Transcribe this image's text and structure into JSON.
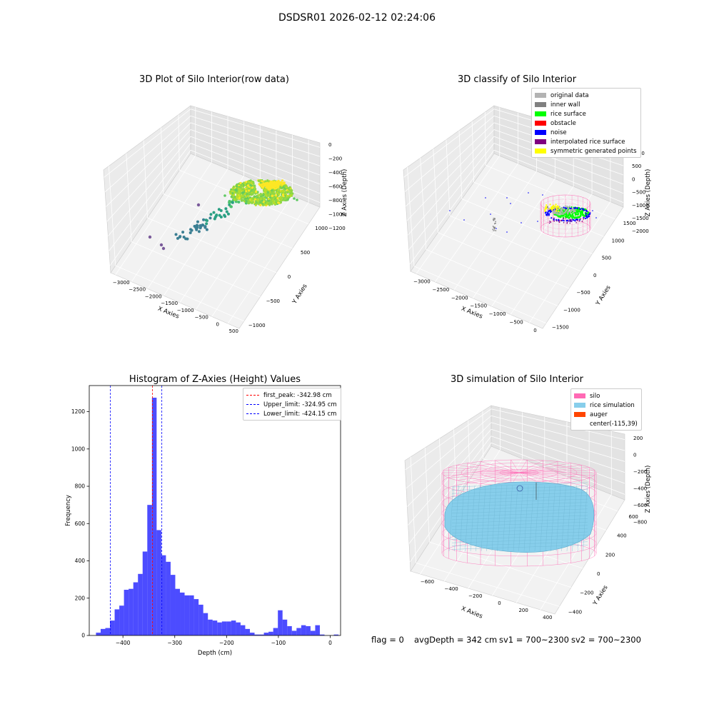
{
  "suptitle": "DSDSR01 2026-02-12 02:24:06",
  "footer": {
    "flag": "flag = 0",
    "avg_depth": "avgDepth = 342 cm",
    "sv1": "sv1 = 700~2300",
    "sv2": "sv2 = 700~2300"
  },
  "colors": {
    "silo": "#ff69b4",
    "rice": "#87ceeb",
    "auger": "#ff4500",
    "hist_bar": "#0000ff",
    "peak_line": "#ff0000",
    "limit_line": "#0000ff"
  },
  "chart_data": [
    {
      "type": "scatter",
      "projection": "3d",
      "title": "3D Plot of Silo Interior(row data)",
      "xlabel": "X Axies",
      "ylabel": "Y Axies",
      "zlabel": "Z Axies (Depth)",
      "x_ticks": [
        "−3000",
        "−2500",
        "−2000",
        "−1500",
        "−1000",
        "−500",
        "0",
        "500"
      ],
      "y_ticks": [
        "−1000",
        "−500",
        "0",
        "500",
        "1000"
      ],
      "z_ticks": [
        "0",
        "−200",
        "−400",
        "−600",
        "−800",
        "−1000",
        "−1200"
      ],
      "xlim": [
        -3300,
        500
      ],
      "ylim": [
        -1000,
        1100
      ],
      "zlim": [
        -1300,
        0
      ],
      "colormap": "viridis",
      "grid": true
    },
    {
      "type": "scatter",
      "projection": "3d",
      "title": "3D classify of Silo Interior",
      "xlabel": "X Axies",
      "ylabel": "Y Axies",
      "zlabel": "Z Axies (Depth)",
      "x_ticks": [
        "−3000",
        "−2500",
        "−2000",
        "−1500",
        "−1000",
        "−500",
        "0"
      ],
      "y_ticks": [
        "−1500",
        "−1000",
        "−500",
        "0",
        "500",
        "1000",
        "1500"
      ],
      "z_ticks": [
        "1000",
        "500",
        "0",
        "−500",
        "−1000",
        "−1500",
        "−2000"
      ],
      "legend_position": "top-right",
      "legend": [
        {
          "label": "original data",
          "color": "#b3b3b3"
        },
        {
          "label": "inner wall",
          "color": "#808080"
        },
        {
          "label": "rice surface",
          "color": "#00ff00"
        },
        {
          "label": "obstacle",
          "color": "#ff0000"
        },
        {
          "label": "noise",
          "color": "#0000ff"
        },
        {
          "label": "interpolated rice surface",
          "color": "#800080"
        },
        {
          "label": "symmetric generated points",
          "color": "#ffff00"
        }
      ],
      "grid": true
    },
    {
      "type": "bar",
      "subtype": "histogram",
      "title": "Histogram of Z-Axies (Height) Values",
      "xlabel": "Depth (cm)",
      "ylabel": "Frequency",
      "xlim": [
        -465,
        20
      ],
      "ylim": [
        0,
        1340
      ],
      "x_ticks": [
        -400,
        -300,
        -200,
        -100,
        0
      ],
      "y_ticks": [
        0,
        200,
        400,
        600,
        800,
        1000,
        1200
      ],
      "bin_width": 9,
      "bin_start": -452,
      "values": [
        15,
        35,
        40,
        80,
        140,
        160,
        245,
        250,
        285,
        330,
        450,
        700,
        1275,
        565,
        430,
        395,
        325,
        250,
        230,
        215,
        215,
        195,
        165,
        120,
        85,
        80,
        70,
        75,
        75,
        80,
        70,
        55,
        35,
        15,
        5,
        5,
        15,
        20,
        40,
        135,
        85,
        50,
        25,
        40,
        55,
        50,
        25,
        55,
        5,
        0,
        0,
        5,
        0
      ],
      "vlines": [
        {
          "label": "first_peak: -342.98 cm",
          "x": -342.98,
          "color": "#ff0000"
        },
        {
          "label": "Upper_limit: -324.95 cm",
          "x": -324.95,
          "color": "#0000ff"
        },
        {
          "label": "Lower_limit: -424.15 cm",
          "x": -424.15,
          "color": "#0000ff"
        }
      ],
      "legend_position": "top-right",
      "grid": false
    },
    {
      "type": "surface",
      "projection": "3d",
      "title": "3D simulation of Silo Interior",
      "xlabel": "X Axies",
      "ylabel": "Y Axies",
      "zlabel": "Z Axies (Depth)",
      "x_ticks": [
        "−600",
        "−400",
        "−200",
        "0",
        "200",
        "400"
      ],
      "y_ticks": [
        "−400",
        "−200",
        "0",
        "200",
        "400",
        "600"
      ],
      "z_ticks": [
        "200",
        "0",
        "−200",
        "−400",
        "−600",
        "−800"
      ],
      "legend_position": "top-right",
      "legend": [
        {
          "label": "silo",
          "color": "#ff69b4"
        },
        {
          "label": "rice simulation",
          "color": "#87ceeb"
        },
        {
          "label": "auger",
          "color": "#ff4500"
        },
        {
          "label": "center(-115,39)",
          "color": ""
        }
      ],
      "grid": true
    }
  ]
}
